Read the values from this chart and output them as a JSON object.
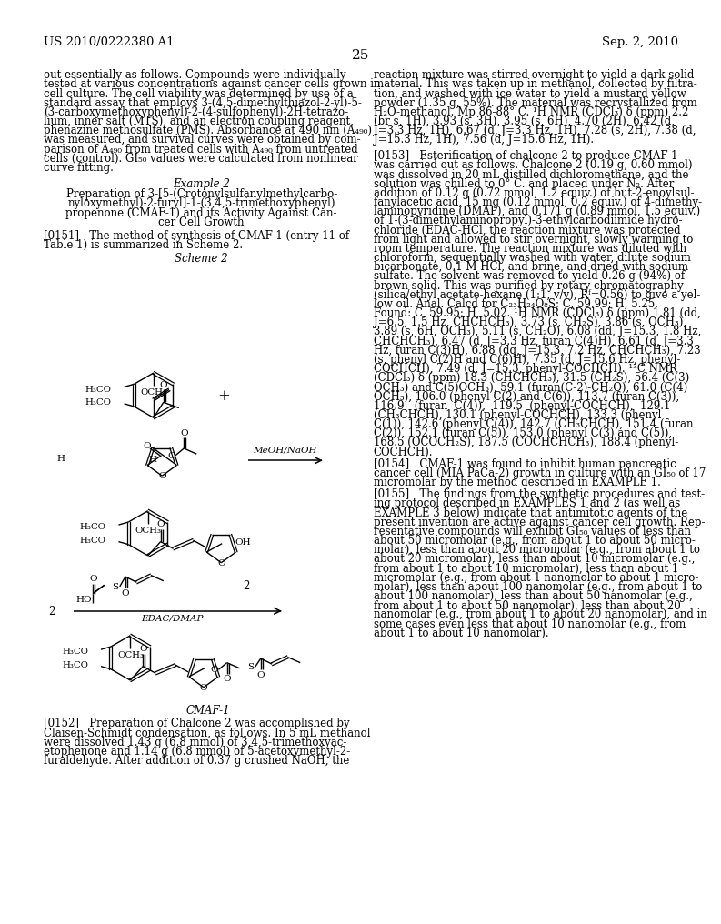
{
  "page_number": "25",
  "patent_number": "US 2010/0222380 A1",
  "patent_date": "Sep. 2, 2010",
  "background_color": "#ffffff",
  "text_color": "#000000",
  "font_size_body": 8.5,
  "left_col_text": [
    "out essentially as follows. Compounds were individually",
    "tested at various concentrations against cancer cells grown in",
    "cell culture. The cell viability was determined by use of a",
    "standard assay that employs 3-(4,5-dimethylthiazol-2-yl)-5-",
    "(3-carboxymethoxyphenyl)-2-(4-sulfophenyl)-2H-tetrazo-",
    "lium, inner salt (MTS), and an electron coupling reagent,",
    "phenazine methosulfate (PMS). Absorbance at 490 nm (A₄₉₀)",
    "was measured, and survival curves were obtained by com-",
    "parison of A₄₉₀ from treated cells with A₄₉₀ from untreated",
    "cells (control). GI₅₀ values were calculated from nonlinear",
    "curve fitting."
  ],
  "right_col_text": [
    "reaction mixture was stirred overnight to yield a dark solid",
    "material. This was taken up in methanol, collected by filtra-",
    "tion, and washed with ice water to yield a mustard yellow",
    "powder (1.35 g, 55%). The material was recrystallized from",
    "H₂O-methanol. Mp 86-88° C. ¹H NMR (CDCl₃) δ (ppm) 2.2",
    "(br s, 1H), 3.93 (s, 3H), 3.95 (s, 6H), 4.70 (2H), 6.42 (d,",
    "J=3.3 Hz, 1H), 6.67 (d, J=3.3 Hz, 1H), 7.28 (s, 2H), 7.38 (d,",
    "J=15.3 Hz, 1H), 7.56 (d, J=15.6 Hz, 1H)."
  ],
  "right_col_0153_lines": [
    "[0153]   Esterification of chalcone 2 to produce CMAF-1",
    "was carried out as follows. Chalcone 2 (0.19 g, 0.60 mmol)",
    "was dissolved in 20 mL distilled dichloromethane, and the",
    "solution was chilled to 0° C. and placed under N₂. After",
    "addition of 0.12 g (0.72 mmol, 1.2 equiv.) of but-2-enoylsul-",
    "fanylacetic acid, 15 mg (0.12 mmol, 0.2 equiv.) of 4-dimethy-",
    "laminopyridine (DMAP), and 0.171 g (0.89 mmol, 1.5 equiv.)",
    "of 1-(3-dimethylaminopropyl)-3-ethylcarbodiimide hydro-",
    "chloride (EDAC-HCl, the reaction mixture was protected",
    "from light and allowed to stir overnight, slowly warming to",
    "room temperature. The reaction mixture was diluted with",
    "chloroform, sequentially washed with water, dilute sodium",
    "bicarbonate, 0.1 M HCl, and brine, and dried with sodium",
    "sulfate. The solvent was removed to yield 0.26 g (94%) of",
    "brown solid. This was purified by rotary chromatography",
    "(silica/ethyl acetate-hexane (1:1, v/v), Rᶠ=0.56) to give a yel-",
    "low oil. Anal. Calcd for C₂₃H₂₄O₈S: C, 59.99; H, 5.25.",
    "Found: C, 59.95; H, 5.02. ¹H NMR (CDCl₃) δ (ppm) 1.81 (dd,",
    "J=6.5, 1.5 Hz, CHCHCH₃), 3.73 (s, CH₂S), 3.86 (s, OCH₃),",
    "3.89 (s, 6H, OCH₃), 5.11 (s, CH₂O), 6.08 (dd, J=15.3, 1.8 Hz,",
    "CHCHCH₃), 6.47 (d, J=3.3 Hz, furan C(4)H), 6.61 (d, J=3.3",
    "Hz, furan C(3)H), 6.88 (dq, J=15.3, 7.2 Hz, CHCHCH₃), 7.23",
    "(s, phenyl C(2)H and C(6)H), 7.35 (d, J=15.6 Hz, phenyl-",
    "COCHCH), 7.49 (d, J=15.3, phenyl-COCHCH). ¹³C NMR",
    "(CDCl₃) δ (ppm) 18.3 (CHCHCH₃), 31.5 (CH₂S), 56.4 (C(3)",
    "OCH₃) and C(5)OCH₃), 59.1 (furan(C-2)-CH₂O), 61.0 (C(4)",
    "OCH₃), 106.0 (phenyl C(2) and C(6)), 113.7 (furan C(3)),",
    "116.9   (furan  C(4)),  119.5  (phenyl-COCHCH),  129.1",
    "(CH₃CHCH), 130.1 (phenyl-COCHCH), 133.3 (phenyl",
    "C(1)), 142.6 (phenyl C(4)), 142.7 (CH₃CHCH), 151.4 (furan",
    "C(2)), 152.1 (furan C(5)), 153.0 (phenyl C(3) and C(5)),",
    "168.5 (OCOCH₂S), 187.5 (COCHCHCH₃), 188.4 (phenyl-",
    "COCHCH)."
  ],
  "right_col_0154_lines": [
    "[0154]   CMAF-1 was found to inhibit human pancreatic",
    "cancer cell (MIA PaCa-2) growth in culture with an GI₅₀ of 17",
    "micromolar by the method described in EXAMPLE 1."
  ],
  "right_col_0155_lines": [
    "[0155]   The findings from the synthetic procedures and test-",
    "ing protocol described in EXAMPLES 1 and 2 (as well as",
    "EXAMPLE 3 below) indicate that antimitotic agents of the",
    "present invention are active against cancer cell growth. Rep-",
    "resentative compounds will exhibit GI₅₀ values of less than",
    "about 50 micromolar (e.g., from about 1 to about 50 micro-",
    "molar), less than about 20 micromolar (e.g., from about 1 to",
    "about 20 micromolar), less than about 10 micromolar (e.g.,",
    "from about 1 to about 10 micromolar), less than about 1",
    "micromolar (e.g., from about 1 nanomolar to about 1 micro-",
    "molar), less than about 100 nanomolar (e.g., from about 1 to",
    "about 100 nanomolar), less than about 50 nanomolar (e.g.,",
    "from about 1 to about 50 nanomolar), less than about 20",
    "nanomolar (e.g., from about 1 to about 20 nanomolar), and in",
    "some cases even less that about 10 nanomolar (e.g., from",
    "about 1 to about 10 nanomolar)."
  ],
  "example2_title": "Example 2",
  "example2_subtitle": [
    "Preparation of 3-[5-(Crotonylsulfanylmethylcarbo-",
    "nyloxymethyl)-2-furyl]-1-(3,4,5-trimethoxyphenyl)",
    "propenone (CMAF-1) and its Activity Against Can-",
    "cer Cell Growth"
  ],
  "paragraph_0151a": "[0151]   The method of synthesis of CMAF-1 (entry 11 of",
  "paragraph_0151b": "Table 1) is summarized in Scheme 2.",
  "paragraph_0152_lines": [
    "[0152]   Preparation of Chalcone 2 was accomplished by",
    "Claisen-Schmidt condensation, as follows. In 5 mL methanol",
    "were dissolved 1.43 g (6.8 mmol) of 3,4,5-trimethoxyac-",
    "etophenone and 1.14 g (6.8 mmol) of 5-acetoxymethyl-2-",
    "furaldehyde. After addition of 0.37 g crushed NaOH, the"
  ]
}
